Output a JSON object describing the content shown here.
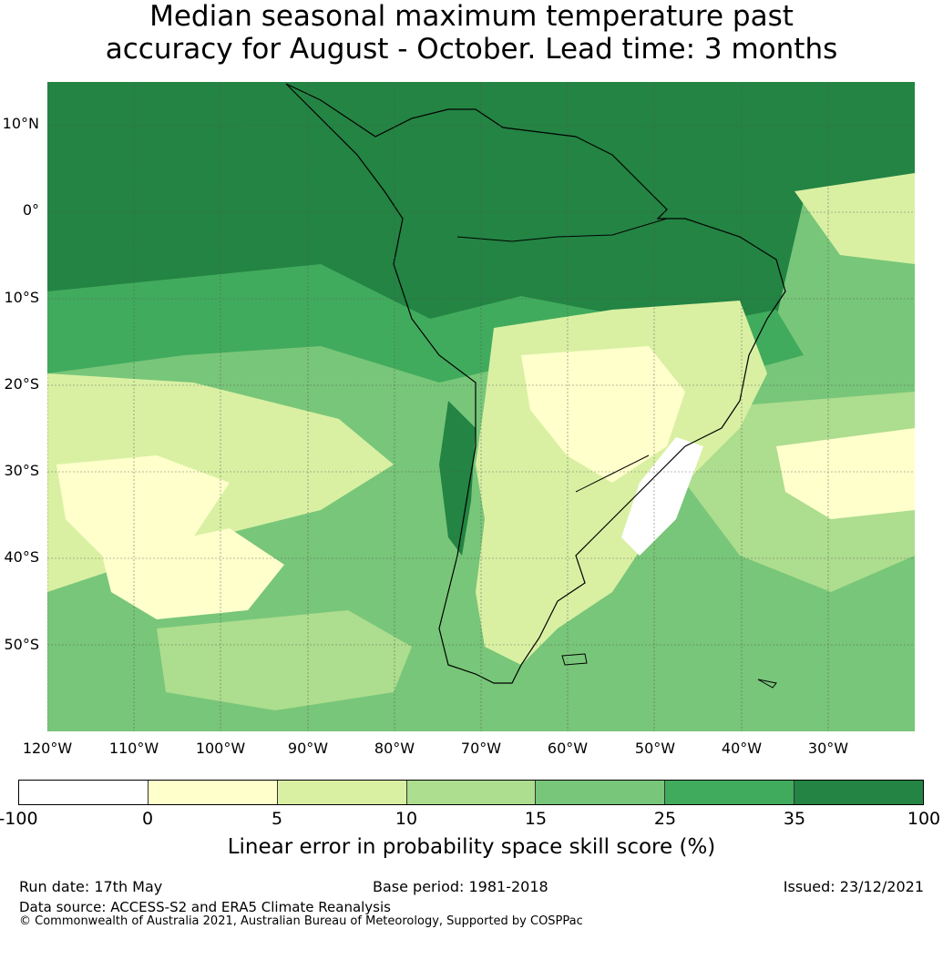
{
  "title_line1": "Median seasonal maximum temperature past",
  "title_line2": "accuracy for August - October. Lead time: 3 months",
  "map": {
    "lat_labels": [
      "10°N",
      "0°",
      "10°S",
      "20°S",
      "30°S",
      "40°S",
      "50°S"
    ],
    "lon_labels": [
      "120°W",
      "110°W",
      "100°W",
      "90°W",
      "80°W",
      "70°W",
      "60°W",
      "50°W",
      "40°W",
      "30°W"
    ],
    "land_outline_color": "#000000",
    "grid_color": "#555555"
  },
  "colorbar": {
    "label": "Linear error in probability space skill score (%)",
    "ticks": [
      "-100",
      "0",
      "5",
      "10",
      "15",
      "25",
      "35",
      "100"
    ],
    "colors": [
      "#ffffff",
      "#ffffcc",
      "#d9f0a3",
      "#addd8e",
      "#78c679",
      "#41ab5d",
      "#238443"
    ]
  },
  "footer": {
    "run_date": "Run date: 17th May",
    "base_period": "Base period: 1981-2018",
    "issued": "Issued: 23/12/2021",
    "data_source": "Data source: ACCESS-S2 and ERA5 Climate Reanalysis",
    "copyright": "© Commonwealth of Australia 2021, Australian Bureau of Meteorology, Supported by COSPPac"
  }
}
